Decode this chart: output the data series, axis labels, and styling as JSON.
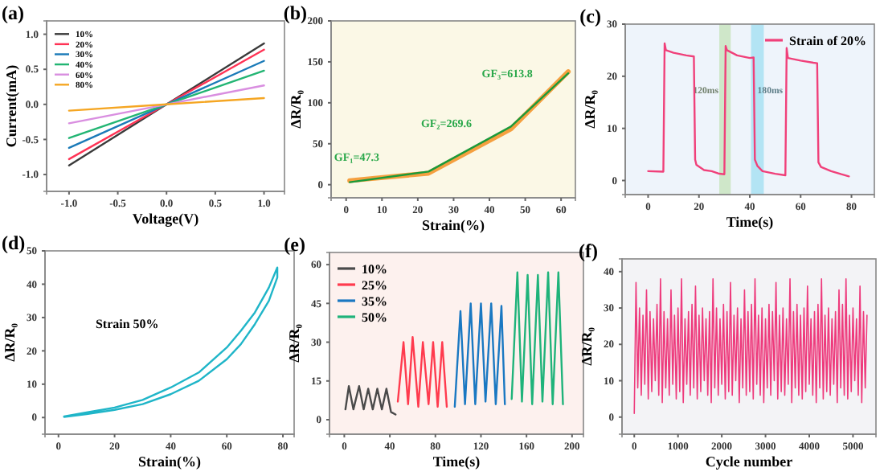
{
  "chart_data": [
    {
      "type": "line",
      "title": "(a)",
      "xlabel": "Voltage(V)",
      "ylabel": "Current(mA)",
      "xlim": [
        -1.23,
        1.21
      ],
      "ylim": [
        -1.24,
        1.19
      ],
      "xticks": [
        {
          "value": -1,
          "label": "-1.0"
        },
        {
          "value": -0.5,
          "label": "-0.5"
        },
        {
          "value": 0,
          "label": "0.0"
        },
        {
          "value": 0.5,
          "label": "0.5"
        },
        {
          "value": 1,
          "label": "1.0"
        }
      ],
      "yticks": [
        {
          "value": -1,
          "label": "-1.0"
        },
        {
          "value": -0.5,
          "label": "-0.5"
        },
        {
          "value": 0,
          "label": "0.0"
        },
        {
          "value": 0.5,
          "label": "0.5"
        },
        {
          "value": 1,
          "label": "1.0"
        }
      ],
      "legend": "top left",
      "x": [
        -1,
        0,
        1
      ],
      "series": [
        {
          "name": "10%",
          "color": "#3a3a3a",
          "values": [
            -0.87,
            0,
            0.87
          ]
        },
        {
          "name": "20%",
          "color": "#ff3355",
          "values": [
            -0.78,
            0,
            0.78
          ]
        },
        {
          "name": "30%",
          "color": "#1a7ab8",
          "values": [
            -0.62,
            0,
            0.62
          ]
        },
        {
          "name": "40%",
          "color": "#22b573",
          "values": [
            -0.48,
            0,
            0.48
          ]
        },
        {
          "name": "60%",
          "color": "#d98ee0",
          "values": [
            -0.27,
            0,
            0.27
          ]
        },
        {
          "name": "80%",
          "color": "#f5a623",
          "values": [
            -0.09,
            0,
            0.09
          ]
        }
      ]
    },
    {
      "type": "line",
      "title": "(b)",
      "xlabel": "Strain(%)",
      "ylabel": "ΔR/R₀",
      "xlim": [
        -4.2,
        64
      ],
      "ylim": [
        -16,
        200
      ],
      "xticks": [
        0,
        10,
        20,
        30,
        40,
        50,
        60
      ],
      "yticks": [
        0,
        50,
        100,
        150,
        200
      ],
      "x": [
        1,
        23,
        46,
        62
      ],
      "series": [
        {
          "color": "#f5a040",
          "values": [
            5,
            14,
            68,
            138
          ]
        },
        {
          "color": "#1a9a3a",
          "values": [
            3,
            16,
            71,
            136
          ]
        }
      ],
      "annotations": [
        "GF₁=47.3",
        "GF₂=269.6",
        "GF₃=613.8"
      ]
    },
    {
      "type": "line",
      "title": "(c)",
      "xlabel": "Time(s)",
      "ylabel": "ΔR/R₀",
      "xlim": [
        -9,
        89
      ],
      "ylim": [
        -2.7,
        30
      ],
      "xticks": [
        0,
        20,
        40,
        60,
        80
      ],
      "yticks": [
        0,
        10,
        20,
        30
      ],
      "legend": "top right",
      "bands": [
        {
          "axis": "x",
          "from": 28,
          "to": 32.5,
          "label": "120ms",
          "color": "#c9e4c0"
        },
        {
          "axis": "x",
          "from": 40.5,
          "to": 45.5,
          "label": "180ms",
          "color": "#a8e0f2"
        }
      ],
      "series": [
        {
          "name": "Strain of 20%",
          "color": "#f0407a",
          "x": [
            0,
            6,
            6.5,
            7,
            10,
            15,
            18,
            18.5,
            19,
            22,
            25,
            28,
            30,
            30.5,
            31,
            35,
            40,
            41.5,
            42,
            43,
            45,
            50,
            54,
            54.5,
            55,
            60,
            65,
            66.5,
            67,
            68,
            72,
            76,
            79
          ],
          "values": [
            1.8,
            1.7,
            26.3,
            25,
            24.5,
            24,
            23.8,
            4,
            3,
            2,
            1.8,
            1.3,
            1.2,
            25.8,
            25,
            24,
            23.5,
            23.6,
            4,
            2.8,
            1.8,
            1.3,
            1,
            25.4,
            23.5,
            23,
            22.6,
            22.5,
            3.5,
            2.6,
            1.8,
            1.2,
            0.8
          ]
        }
      ]
    },
    {
      "type": "line",
      "title": "(d)",
      "xlabel": "Strain(%)",
      "ylabel": "ΔR/R₀",
      "xlim": [
        -4.8,
        84
      ],
      "ylim": [
        -5,
        50
      ],
      "xticks": [
        0,
        20,
        40,
        60,
        80
      ],
      "yticks": [
        0,
        10,
        20,
        30,
        40,
        50
      ],
      "annotations": [
        "Strain 50%"
      ],
      "series": [
        {
          "color": "#1fb5c8",
          "x": [
            2,
            10,
            20,
            30,
            40,
            50,
            60,
            65,
            70,
            75,
            78,
            78,
            75,
            70,
            65,
            60,
            50,
            40,
            30,
            20,
            10,
            2
          ],
          "values": [
            0.2,
            1,
            2.3,
            4,
            7,
            11,
            17.5,
            22,
            28,
            35,
            42,
            45,
            39,
            31.5,
            26,
            21,
            13.5,
            9,
            5.3,
            3,
            1.5,
            0.3
          ]
        }
      ]
    },
    {
      "type": "line",
      "title": "(e)",
      "xlabel": "Time(s)",
      "ylabel": "ΔR/R₀",
      "xlim": [
        -13,
        210
      ],
      "ylim": [
        -5.6,
        64.7
      ],
      "xticks": [
        0,
        40,
        80,
        120,
        160,
        200
      ],
      "yticks": [
        0,
        15,
        30,
        45,
        60
      ],
      "legend": "top left",
      "series": [
        {
          "name": "10%",
          "color": "#4a4a4a",
          "x": [
            1,
            4,
            8,
            13,
            17,
            21,
            25,
            29,
            33,
            37,
            41,
            45
          ],
          "values": [
            4,
            13,
            4,
            13,
            4,
            12,
            4,
            12,
            4,
            12,
            3,
            2
          ]
        },
        {
          "name": "25%",
          "color": "#ff3b4e",
          "x": [
            47,
            52,
            56,
            60,
            65,
            69,
            74,
            78,
            82,
            86,
            90
          ],
          "values": [
            7,
            30,
            6,
            32,
            5,
            30,
            6,
            30,
            5,
            30,
            5
          ]
        },
        {
          "name": "35%",
          "color": "#1a78c2",
          "x": [
            97,
            102,
            106,
            111,
            115,
            120,
            124,
            129,
            133,
            138,
            141
          ],
          "values": [
            5,
            42,
            6,
            45,
            6,
            45,
            7,
            45,
            6,
            44,
            6
          ]
        },
        {
          "name": "50%",
          "color": "#1fb37a",
          "x": [
            147,
            152,
            156,
            161,
            165,
            170,
            174,
            179,
            183,
            188,
            192
          ],
          "values": [
            8,
            57,
            7,
            56,
            6,
            56,
            7,
            57,
            6,
            57,
            6
          ]
        }
      ]
    },
    {
      "type": "line",
      "title": "(f)",
      "xlabel": "Cycle number",
      "ylabel": "ΔR/R₀",
      "xlim": [
        -280,
        5525
      ],
      "ylim": [
        -4.7,
        43.5
      ],
      "xticks": [
        0,
        1000,
        2000,
        3000,
        4000,
        5000
      ],
      "yticks": [
        0,
        10,
        20,
        30,
        40
      ],
      "series": [
        {
          "color": "#ee3a7c",
          "x": [
            0,
            40,
            80,
            120,
            160,
            200,
            240,
            280,
            320,
            360,
            400,
            440,
            480,
            520,
            560,
            600,
            640,
            680,
            720,
            760,
            800,
            840,
            880,
            920,
            960,
            1000,
            1040,
            1080,
            1120,
            1160,
            1200,
            1240,
            1280,
            1320,
            1360,
            1400,
            1440,
            1480,
            1520,
            1560,
            1600,
            1640,
            1680,
            1720,
            1760,
            1800,
            1840,
            1880,
            1920,
            1960,
            2000,
            2040,
            2080,
            2120,
            2160,
            2200,
            2240,
            2280,
            2320,
            2360,
            2400,
            2440,
            2480,
            2520,
            2560,
            2600,
            2640,
            2680,
            2720,
            2760,
            2800,
            2840,
            2880,
            2920,
            2960,
            3000,
            3040,
            3080,
            3120,
            3160,
            3200,
            3240,
            3280,
            3320,
            3360,
            3400,
            3440,
            3480,
            3520,
            3560,
            3600,
            3640,
            3680,
            3720,
            3760,
            3800,
            3840,
            3880,
            3920,
            3960,
            4000,
            4040,
            4080,
            4120,
            4160,
            4200,
            4240,
            4280,
            4320,
            4360,
            4400,
            4440,
            4480,
            4520,
            4560,
            4600,
            4640,
            4680,
            4720,
            4760,
            4800,
            4840,
            4880,
            4920,
            4960,
            5000,
            5040,
            5080,
            5120,
            5160,
            5200,
            5240,
            5280,
            5320
          ],
          "values": [
            1,
            37,
            8,
            30,
            6,
            28,
            9,
            35,
            5,
            29,
            7,
            27,
            10,
            31,
            6,
            38,
            4,
            29,
            8,
            27,
            6,
            35,
            9,
            28,
            5,
            30,
            7,
            38,
            4,
            27,
            9,
            29,
            6,
            31,
            8,
            36,
            5,
            28,
            7,
            30,
            10,
            27,
            6,
            29,
            4,
            38,
            8,
            30,
            6,
            27,
            9,
            31,
            5,
            29,
            7,
            37,
            6,
            28,
            10,
            30,
            4,
            27,
            8,
            35,
            6,
            29,
            7,
            31,
            5,
            38,
            9,
            28,
            6,
            30,
            4,
            27,
            8,
            31,
            6,
            29,
            10,
            37,
            5,
            28,
            7,
            30,
            6,
            27,
            9,
            38,
            4,
            29,
            8,
            31,
            6,
            28,
            5,
            30,
            7,
            36,
            9,
            27,
            6,
            29,
            4,
            31,
            8,
            38,
            5,
            28,
            7,
            30,
            6,
            27,
            9,
            29,
            4,
            35,
            8,
            31,
            6,
            38,
            5,
            28,
            7,
            30,
            10,
            27,
            6,
            36,
            4,
            29,
            8,
            28
          ]
        }
      ]
    }
  ]
}
